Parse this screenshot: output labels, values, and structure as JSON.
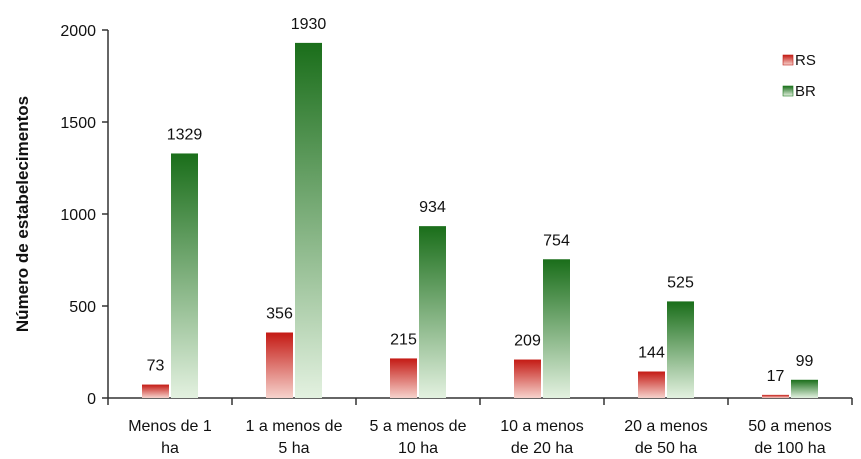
{
  "chart_data": {
    "type": "bar",
    "categories": [
      [
        "Menos de 1",
        "ha"
      ],
      [
        "1 a menos de",
        "5 ha"
      ],
      [
        "5 a menos de",
        "10 ha"
      ],
      [
        "10 a menos",
        "de 20 ha"
      ],
      [
        "20 a menos",
        "de 50 ha"
      ],
      [
        "50 a menos",
        "de 100 ha"
      ]
    ],
    "series": [
      {
        "name": "RS",
        "values": [
          73,
          356,
          215,
          209,
          144,
          17
        ],
        "color": "#c0201a"
      },
      {
        "name": "BR",
        "values": [
          1329,
          1930,
          934,
          754,
          525,
          99
        ],
        "color": "#1e7a1e"
      }
    ],
    "title": "",
    "xlabel": "",
    "ylabel": "Número de estabelecimentos",
    "ylim": [
      0,
      2000
    ],
    "yticks": [
      0,
      500,
      1000,
      1500,
      2000
    ],
    "grid": false,
    "legend": "top-right",
    "data_labels": [
      "73",
      "356",
      "215",
      "209",
      "144",
      "17",
      "1329",
      "1930",
      "934",
      "754",
      "525",
      "99"
    ]
  }
}
